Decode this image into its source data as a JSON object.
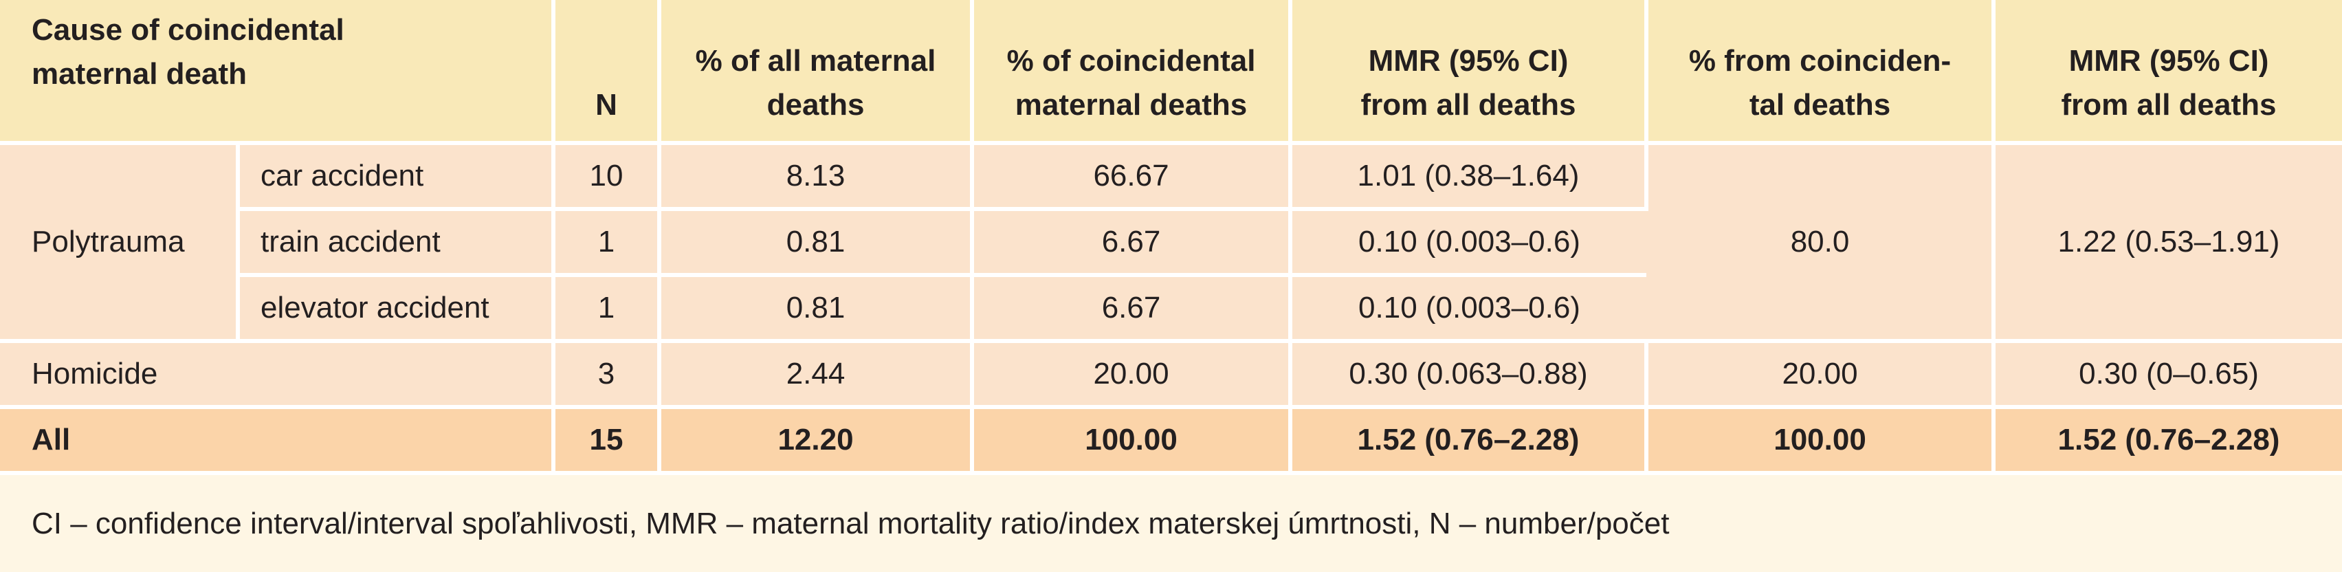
{
  "header": {
    "cause_line1": "Cause of coincidental",
    "cause_line2": "maternal death",
    "n": "N",
    "pct_all_line1": "% of all maternal",
    "pct_all_line2": "deaths",
    "pct_coinc_line1": "% of coincidental",
    "pct_coinc_line2": "maternal deaths",
    "mmr_line1": "MMR (95% CI)",
    "mmr_line2": "from all deaths",
    "pct_from_line1": "% from coinciden-",
    "pct_from_line2": "tal deaths",
    "mmr2_line1": "MMR (95% CI)",
    "mmr2_line2": "from all deaths"
  },
  "polytrauma": {
    "label": "Polytrauma",
    "group_pct": "80.0",
    "group_mmr": "1.22 (0.53–1.91)",
    "rows": [
      {
        "cause": "car accident",
        "n": "10",
        "pct_all": "8.13",
        "pct_coinc": "66.67",
        "mmr": "1.01 (0.38–1.64)"
      },
      {
        "cause": "train accident",
        "n": "1",
        "pct_all": "0.81",
        "pct_coinc": "6.67",
        "mmr": "0.10 (0.003–0.6)"
      },
      {
        "cause": "elevator accident",
        "n": "1",
        "pct_all": "0.81",
        "pct_coinc": "6.67",
        "mmr": "0.10 (0.003–0.6)"
      }
    ]
  },
  "homicide": {
    "label": "Homicide",
    "n": "3",
    "pct_all": "2.44",
    "pct_coinc": "20.00",
    "mmr": "0.30 (0.063–0.88)",
    "pct_from": "20.00",
    "mmr2": "0.30 (0–0.65)"
  },
  "total": {
    "label": "All",
    "n": "15",
    "pct_all": "12.20",
    "pct_coinc": "100.00",
    "mmr": "1.52 (0.76–2.28)",
    "pct_from": "100.00",
    "mmr2": "1.52 (0.76–2.28)"
  },
  "footnote": "CI – confidence interval/interval spoľahlivosti, MMR – maternal mortality ratio/index materskej úmrtnosti, N – number/počet",
  "colors": {
    "header_bg": "#f9e9b8",
    "row_bg": "#fbe3cc",
    "total_bg": "#fbd4a9",
    "note_bg": "#fef6e4",
    "text": "#231f20"
  }
}
